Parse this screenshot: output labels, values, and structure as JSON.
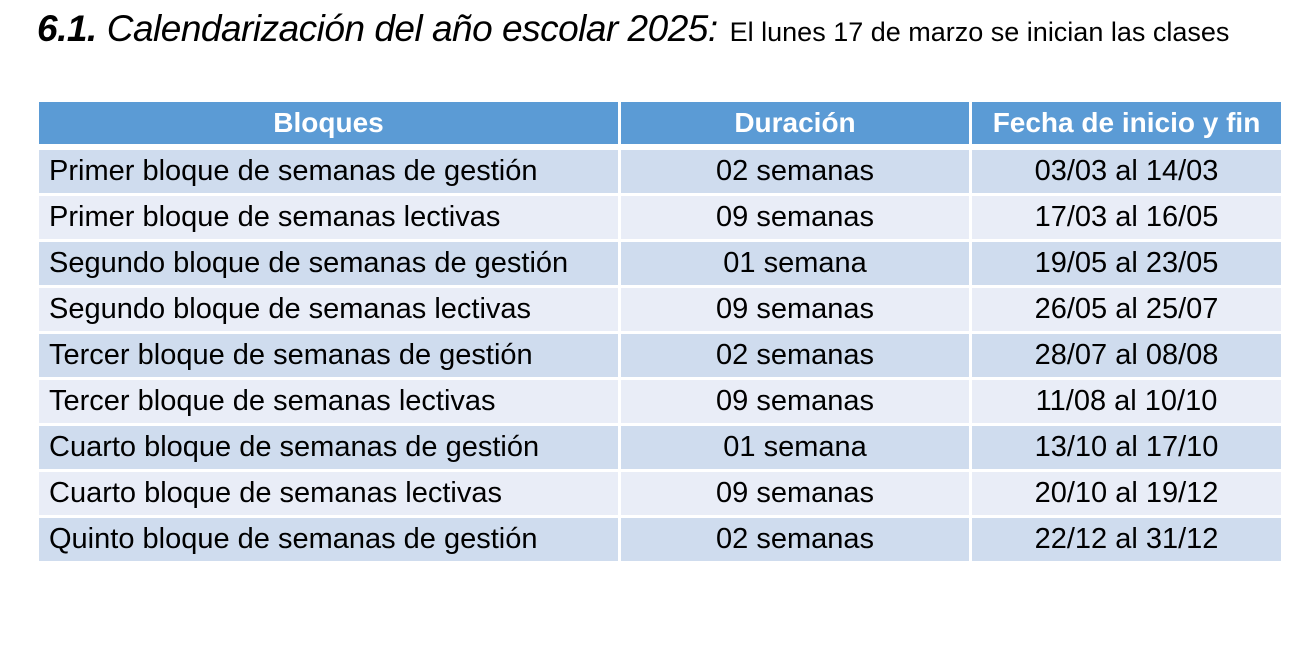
{
  "title": {
    "number": "6.1.",
    "main": "Calendarización del año escolar 2025:",
    "note": "El lunes 17 de marzo se inician las clases"
  },
  "table": {
    "columns": [
      "Bloques",
      "Duración",
      "Fecha de inicio y fin"
    ],
    "rows": [
      {
        "bloque": "Primer bloque de semanas de gestión",
        "duracion": "02 semanas",
        "fecha": "03/03 al 14/03"
      },
      {
        "bloque": "Primer bloque de semanas lectivas",
        "duracion": "09 semanas",
        "fecha": "17/03 al 16/05"
      },
      {
        "bloque": "Segundo bloque de semanas de gestión",
        "duracion": "01 semana",
        "fecha": "19/05 al 23/05"
      },
      {
        "bloque": "Segundo bloque de semanas lectivas",
        "duracion": "09 semanas",
        "fecha": "26/05 al 25/07"
      },
      {
        "bloque": "Tercer bloque de semanas de gestión",
        "duracion": "02 semanas",
        "fecha": "28/07 al 08/08"
      },
      {
        "bloque": "Tercer bloque de semanas lectivas",
        "duracion": "09 semanas",
        "fecha": "11/08 al 10/10"
      },
      {
        "bloque": "Cuarto bloque de semanas de gestión",
        "duracion": "01 semana",
        "fecha": "13/10 al 17/10"
      },
      {
        "bloque": "Cuarto bloque de semanas lectivas",
        "duracion": "09 semanas",
        "fecha": "20/10 al 19/12"
      },
      {
        "bloque": "Quinto bloque de semanas de gestión",
        "duracion": "02 semanas",
        "fecha": "22/12 al 31/12"
      }
    ]
  },
  "colors": {
    "header_bg": "#5B9BD5",
    "header_text": "#FFFFFF",
    "row_band_dark": "#CFDCEE",
    "row_band_light": "#E9EDF7",
    "body_text": "#000000"
  }
}
